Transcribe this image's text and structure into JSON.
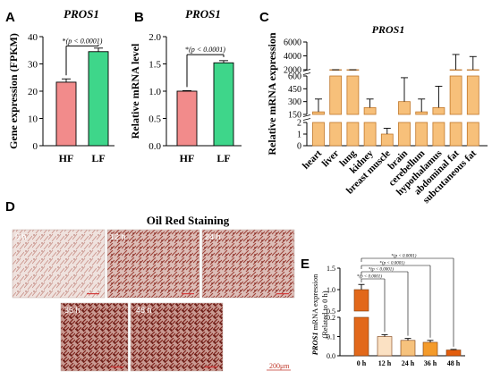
{
  "panels": {
    "A": {
      "letter": "A"
    },
    "B": {
      "letter": "B"
    },
    "C": {
      "letter": "C"
    },
    "D": {
      "letter": "D",
      "title": "Oil Red Staining",
      "scale_bar": "200μm",
      "images": [
        {
          "label": "0 h"
        },
        {
          "label": "12 h"
        },
        {
          "label": "24 h"
        },
        {
          "label": "36 h"
        },
        {
          "label": "48 h"
        }
      ]
    },
    "E": {
      "letter": "E"
    }
  },
  "colors": {
    "hf": "#f28b8b",
    "lf": "#3ed68a",
    "tissue": "#f7c07a",
    "tissue_stroke": "#c0772a",
    "stain_bg": "#e9d6d2",
    "stain_dense": "#8a2a22"
  },
  "chart_data": [
    {
      "id": "A",
      "type": "bar",
      "title": "PROS1",
      "categories": [
        "HF",
        "LF"
      ],
      "values": [
        23.3,
        34.5
      ],
      "errors": [
        1.2,
        1.3
      ],
      "ylabel": "Gene expression (FPKM)",
      "ylim": [
        0,
        40
      ],
      "yticks": [
        "0",
        "10",
        "20",
        "30",
        "40"
      ],
      "annotation": "*(p < 0.0001)"
    },
    {
      "id": "B",
      "type": "bar",
      "title": "PROS1",
      "categories": [
        "HF",
        "LF"
      ],
      "values": [
        1.0,
        1.52
      ],
      "errors": [
        0.01,
        0.04
      ],
      "ylabel": "Relative mRNA level",
      "ylim": [
        0,
        2.0
      ],
      "yticks": [
        "0.0",
        "0.5",
        "1.0",
        "1.5",
        "2.0"
      ],
      "annotation": "*(p < 0.0001)"
    },
    {
      "id": "C",
      "type": "bar",
      "title": "PROS1",
      "categories": [
        "heart",
        "liver",
        "lung",
        "kidney",
        "breast muscle",
        "brain",
        "cerebellum",
        "hypothalamus",
        "abdominal fat",
        "subcutaneous fat"
      ],
      "values": [
        180,
        700,
        800,
        230,
        1,
        300,
        180,
        230,
        1900,
        1700
      ],
      "errors": [
        150,
        1000,
        1100,
        100,
        0.5,
        280,
        150,
        250,
        2300,
        2200
      ],
      "ylabel": "Relative mRNA expression",
      "axis_break": true,
      "yticks": [
        "0",
        "1",
        "2",
        "150",
        "300",
        "450",
        "600",
        "2000",
        "4000",
        "6000"
      ]
    },
    {
      "id": "E",
      "type": "bar",
      "categories": [
        "0 h",
        "12 h",
        "24 h",
        "36 h",
        "48 h"
      ],
      "values": [
        1.0,
        0.1,
        0.08,
        0.07,
        0.03
      ],
      "errors": [
        0.12,
        0.01,
        0.01,
        0.01,
        0.003
      ],
      "ylabel": "PROS1 mRNA expression",
      "ylabel2": "(Related to 0 h)",
      "yticks": [
        "0.0",
        "0.1",
        "0.2",
        "0.5",
        "1.0",
        "1.5"
      ],
      "annotations": [
        "*(p < 0.0001)",
        "*(p < 0.0001)",
        "*(p < 0.0001)",
        "*(p < 0.0001)"
      ]
    }
  ]
}
